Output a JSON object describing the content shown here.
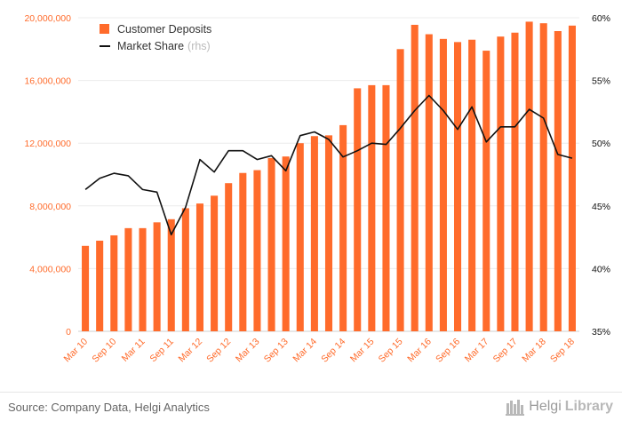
{
  "chart_data": {
    "type": "bar",
    "categories": [
      "Mar 10",
      "Jun 10",
      "Sep 10",
      "Dec 10",
      "Mar 11",
      "Jun 11",
      "Sep 11",
      "Dec 11",
      "Mar 12",
      "Jun 12",
      "Sep 12",
      "Dec 12",
      "Mar 13",
      "Jun 13",
      "Sep 13",
      "Dec 13",
      "Mar 14",
      "Jun 14",
      "Sep 14",
      "Dec 14",
      "Mar 15",
      "Jun 15",
      "Sep 15",
      "Dec 15",
      "Mar 16",
      "Jun 16",
      "Sep 16",
      "Dec 16",
      "Mar 17",
      "Jun 17",
      "Sep 17",
      "Dec 17",
      "Mar 18",
      "Jun 18",
      "Sep 18"
    ],
    "x_tick_labels": [
      "Mar 10",
      "Sep 10",
      "Mar 11",
      "Sep 11",
      "Mar 12",
      "Sep 12",
      "Mar 13",
      "Sep 13",
      "Mar 14",
      "Sep 14",
      "Mar 15",
      "Sep 15",
      "Mar 16",
      "Sep 16",
      "Mar 17",
      "Sep 17",
      "Mar 18",
      "Sep 18"
    ],
    "series": [
      {
        "name": "Customer Deposits",
        "type": "bar",
        "axis": "left",
        "color": "#ff6b2b",
        "values": [
          5450000,
          5780000,
          6120000,
          6580000,
          6580000,
          6950000,
          7150000,
          7850000,
          8150000,
          8650000,
          9450000,
          10100000,
          10280000,
          11050000,
          11150000,
          12000000,
          12450000,
          12500000,
          13150000,
          15500000,
          15700000,
          15700000,
          18000000,
          19550000,
          18950000,
          18650000,
          18450000,
          18600000,
          17900000,
          18800000,
          19050000,
          19750000,
          19650000,
          19150000,
          19500000
        ]
      },
      {
        "name": "Market Share",
        "type": "line",
        "axis": "right",
        "color": "#111111",
        "values": [
          46.3,
          47.2,
          47.6,
          47.4,
          46.3,
          46.1,
          42.7,
          44.9,
          48.7,
          47.7,
          49.4,
          49.4,
          48.7,
          49.0,
          47.8,
          50.6,
          50.9,
          50.3,
          48.9,
          49.4,
          50.0,
          49.9,
          51.2,
          52.6,
          53.8,
          52.6,
          51.1,
          52.9,
          50.1,
          51.3,
          51.3,
          52.7,
          52.0,
          49.1,
          48.8
        ]
      }
    ],
    "legend": {
      "entries": [
        "Customer Deposits",
        "Market Share"
      ],
      "suffix": "(rhs)",
      "placement": "top-left"
    },
    "y_left": {
      "ylim": [
        0,
        20000000
      ],
      "ticks": [
        0,
        4000000,
        8000000,
        12000000,
        16000000,
        20000000
      ],
      "tick_labels": [
        "0",
        "4,000,000",
        "8,000,000",
        "12,000,000",
        "16,000,000",
        "20,000,000"
      ],
      "color": "#ff6b2b"
    },
    "y_right": {
      "ylim": [
        35,
        60
      ],
      "ticks": [
        35,
        40,
        45,
        50,
        55,
        60
      ],
      "tick_labels": [
        "35%",
        "40%",
        "45%",
        "50%",
        "55%",
        "60%"
      ],
      "color": "#111111"
    },
    "grid": true
  },
  "footer": {
    "source": "Source: Company Data, Helgi Analytics",
    "brand_part1": "Helgi",
    "brand_part2": "Library"
  }
}
